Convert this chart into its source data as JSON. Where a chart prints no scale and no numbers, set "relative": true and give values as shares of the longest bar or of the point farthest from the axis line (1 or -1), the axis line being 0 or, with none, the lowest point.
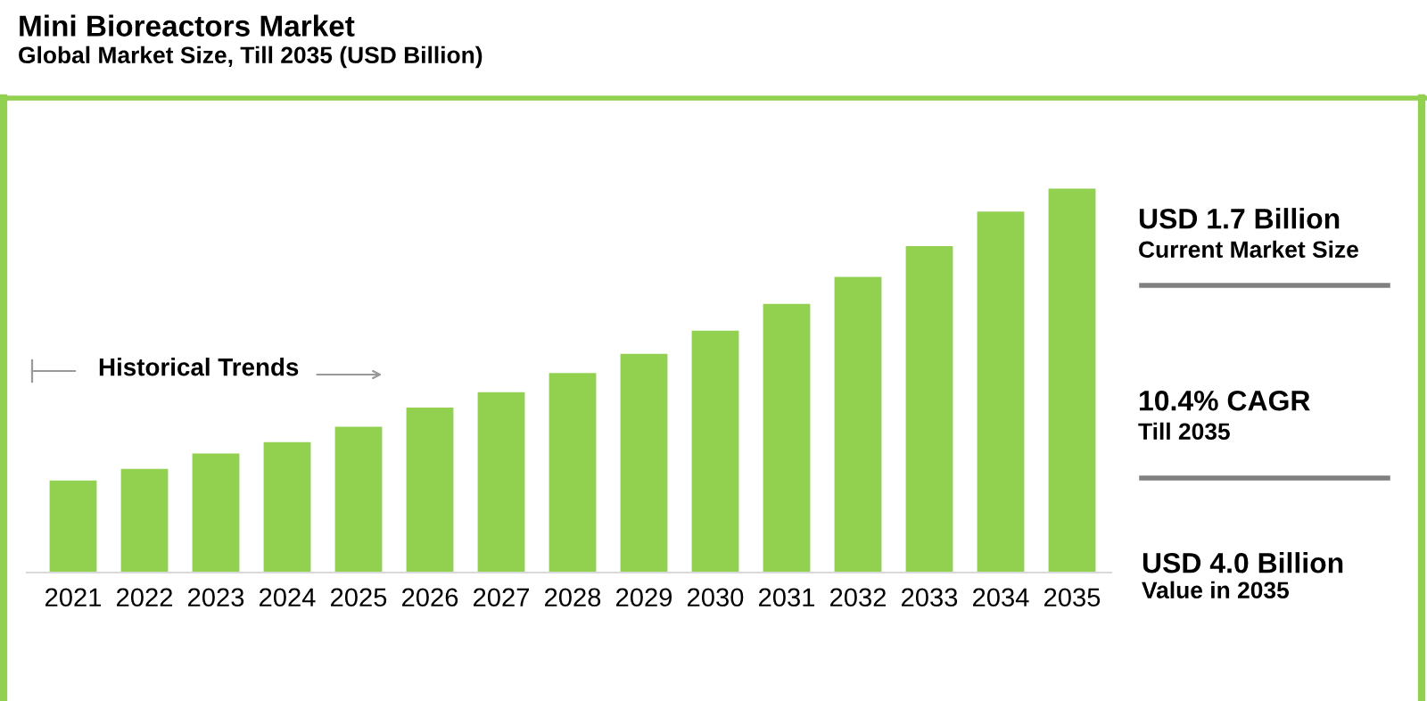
{
  "chart_data": {
    "type": "bar",
    "title": "Mini Bioreactors Market",
    "subtitle": "Global Market Size, Till 2035 (USD Billion)",
    "categories": [
      "2021",
      "2022",
      "2023",
      "2024",
      "2025",
      "2026",
      "2027",
      "2028",
      "2029",
      "2030",
      "2031",
      "2032",
      "2033",
      "2034",
      "2035"
    ],
    "values": [
      0.24,
      0.27,
      0.31,
      0.34,
      0.38,
      0.43,
      0.47,
      0.52,
      0.57,
      0.63,
      0.7,
      0.77,
      0.85,
      0.94,
      1.0
    ],
    "color": "#92d050",
    "relative": true,
    "grid": false,
    "legend": false,
    "annotations": [
      "Historical Trends",
      "USD 1.7 Billion",
      "Current Market Size",
      "10.4% CAGR",
      "Till 2035",
      "USD 4.0 Billion",
      "Value in 2035"
    ]
  }
}
